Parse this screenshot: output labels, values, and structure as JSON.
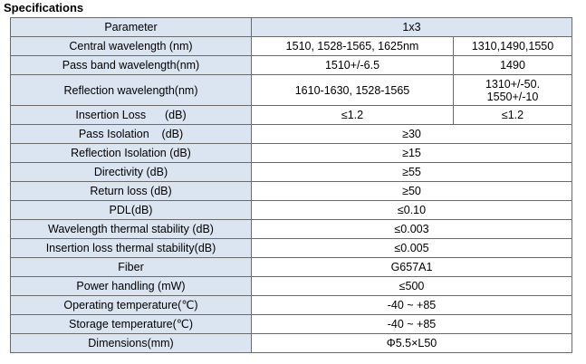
{
  "title": "Specifications",
  "header": {
    "parameter": "Parameter",
    "config": "1x3"
  },
  "rows": [
    {
      "param": "Central wavelength (nm)",
      "a": "1510, 1528-1565, 1625nm",
      "b": "1310,1490,1550"
    },
    {
      "param": "Pass band wavelength(nm)",
      "a": "1510+/-6.5",
      "b": "1490"
    },
    {
      "param": "Reflection wavelength(nm)",
      "a": "1610-1630, 1528-1565",
      "b_line1": "1310+/-50.",
      "b_line2": "1550+/-10"
    },
    {
      "param": "Insertion Loss      (dB)",
      "a": "≤1.2",
      "b": "≤1.2"
    },
    {
      "param": "Pass Isolation    (dB)",
      "value": "≥30"
    },
    {
      "param": "Reflection Isolation (dB)",
      "value": "≥15"
    },
    {
      "param": "Directivity (dB)",
      "value": "≥55"
    },
    {
      "param": "Return loss (dB)",
      "value": "≥50"
    },
    {
      "param": "PDL(dB)",
      "value": "≤0.10"
    },
    {
      "param": "Wavelength thermal stability (dB)",
      "value": "≤0.003"
    },
    {
      "param": "Insertion loss thermal stability(dB)",
      "value": "≤0.005"
    },
    {
      "param": "Fiber",
      "value": "G657A1"
    },
    {
      "param": "Power handling (mW)",
      "value": "≤500"
    },
    {
      "param": "Operating temperature(℃)",
      "value": "-40 ~ +85"
    },
    {
      "param": "Storage temperature(℃)",
      "value": "-40 ~ +85"
    },
    {
      "param": "Dimensions(mm)",
      "value": "Φ5.5×L50"
    }
  ]
}
